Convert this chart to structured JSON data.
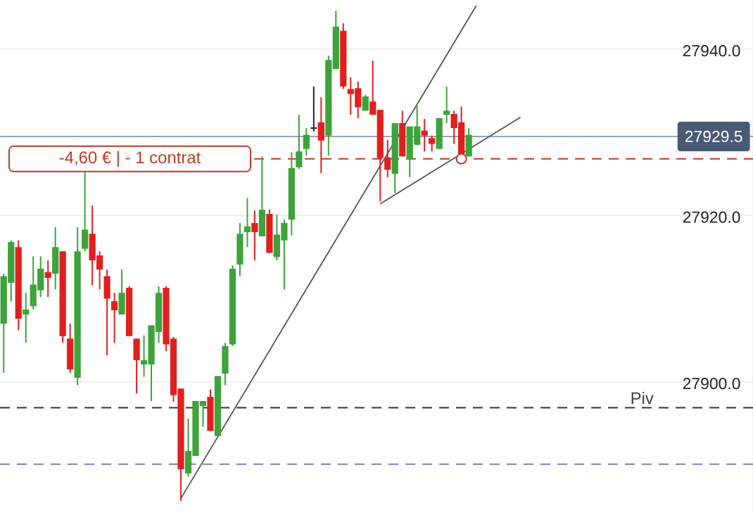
{
  "chart_data": {
    "type": "candlestick",
    "categories": [
      null,
      null,
      null,
      null,
      null,
      null,
      null,
      null,
      null,
      null,
      null,
      null,
      null,
      null,
      null,
      null,
      null,
      null,
      null,
      null,
      null,
      null,
      null,
      null,
      null,
      null,
      null,
      null,
      null,
      null,
      null,
      null,
      null,
      null,
      null,
      null,
      null,
      null,
      null,
      null,
      null,
      null,
      null,
      null,
      null,
      null,
      null,
      null,
      null,
      null,
      null,
      null,
      null,
      null,
      null,
      null,
      null,
      null,
      null,
      null,
      null,
      null,
      null,
      null,
      null,
      null,
      null,
      null,
      null,
      null,
      null,
      null,
      null,
      null,
      null,
      null,
      null,
      null,
      null,
      null,
      null,
      null,
      null,
      null,
      null,
      null,
      null,
      null,
      null,
      null,
      null,
      null,
      null,
      null,
      null,
      null,
      null,
      null,
      null,
      null,
      null,
      null
    ],
    "ohlc": [
      [
        27907.0,
        27913.0,
        27901.1,
        27912.7
      ],
      [
        27911.9,
        27917.0,
        27909.7,
        27916.8
      ],
      [
        27916.2,
        27917.0,
        27906.2,
        27907.6
      ],
      [
        27908.1,
        27910.7,
        27904.7,
        27908.7
      ],
      [
        27909.1,
        27915.1,
        27908.7,
        27911.7
      ],
      [
        27911.0,
        27915.1,
        27910.2,
        27913.6
      ],
      [
        27913.2,
        27914.6,
        27910.2,
        27912.5
      ],
      [
        27913.0,
        27918.6,
        27911.1,
        27916.2
      ],
      [
        27915.7,
        27915.7,
        27904.7,
        27905.5
      ],
      [
        27905.2,
        27907.0,
        27901.1,
        27901.5
      ],
      [
        27900.5,
        27918.6,
        27899.6,
        27915.7
      ],
      [
        27916.0,
        27925.2,
        27915.7,
        27918.3
      ],
      [
        27917.8,
        27921.2,
        27911.6,
        27914.6
      ],
      [
        27915.2,
        27915.7,
        27911.1,
        27913.5
      ],
      [
        27912.7,
        27913.5,
        27903.2,
        27910.0
      ],
      [
        27909.7,
        27910.7,
        27904.7,
        27908.6
      ],
      [
        27908.1,
        27913.5,
        27908.1,
        27910.7
      ],
      [
        27911.3,
        27911.5,
        27905.5,
        27905.5
      ],
      [
        27905.2,
        27905.2,
        27898.6,
        27902.6
      ],
      [
        27902.1,
        27905.6,
        27900.6,
        27902.6
      ],
      [
        27902.1,
        27906.8,
        27897.7,
        27906.8
      ],
      [
        27906.0,
        27911.5,
        27904.7,
        27910.7
      ],
      [
        27911.3,
        27911.5,
        27903.7,
        27904.5
      ],
      [
        27905.2,
        27905.4,
        27897.6,
        27898.4
      ],
      [
        27899.2,
        27899.2,
        27885.7,
        27889.5
      ],
      [
        27889.0,
        27895.6,
        27888.6,
        27891.7
      ],
      [
        27891.1,
        27897.7,
        27891.1,
        27897.7
      ],
      [
        27897.1,
        27897.7,
        27894.6,
        27897.7
      ],
      [
        27898.2,
        27899.1,
        27894.1,
        27894.1
      ],
      [
        27893.5,
        27900.7,
        27893.5,
        27900.7
      ],
      [
        27901.0,
        27904.7,
        27899.6,
        27904.3
      ],
      [
        27904.5,
        27914.0,
        27904.3,
        27913.6
      ],
      [
        27914.1,
        27919.1,
        27912.7,
        27917.8
      ],
      [
        27918.0,
        27922.1,
        27916.2,
        27918.7
      ],
      [
        27919.1,
        27920.6,
        27914.6,
        27918.0
      ],
      [
        27917.5,
        27927.1,
        27917.5,
        27920.7
      ],
      [
        27920.2,
        27920.7,
        27915.5,
        27915.5
      ],
      [
        27915.0,
        27920.1,
        27914.6,
        27917.7
      ],
      [
        27917.0,
        27919.5,
        27911.1,
        27919.1
      ],
      [
        27919.5,
        27927.6,
        27917.6,
        27925.7
      ],
      [
        27925.8,
        27932.1,
        27925.6,
        27927.7
      ],
      [
        27928.0,
        27930.5,
        27927.2,
        27929.7
      ],
      [
        27930.5,
        27935.5,
        27930.1,
        27930.5
      ],
      [
        27931.2,
        27934.2,
        27925.1,
        27929.0
      ],
      [
        27929.6,
        27939.2,
        27927.2,
        27938.7
      ],
      [
        27937.6,
        27944.6,
        27937.6,
        27942.7
      ],
      [
        27942.2,
        27943.1,
        27935.2,
        27935.5
      ],
      [
        27935.2,
        27936.6,
        27932.1,
        27934.6
      ],
      [
        27935.3,
        27936.1,
        27931.7,
        27933.0
      ],
      [
        27932.6,
        27934.5,
        27932.6,
        27934.3
      ],
      [
        27933.7,
        27938.6,
        27932.1,
        27932.1
      ],
      [
        27932.7,
        27932.7,
        27921.7,
        27926.9
      ],
      [
        27927.0,
        27929.1,
        27924.6,
        27925.5
      ],
      [
        27925.0,
        27931.1,
        27922.7,
        27931.1
      ],
      [
        27931.1,
        27932.6,
        27927.1,
        27927.1
      ],
      [
        27926.7,
        27930.7,
        27924.6,
        27930.7
      ],
      [
        27928.5,
        27933.2,
        27928.5,
        27930.7
      ],
      [
        27930.2,
        27931.6,
        27927.7,
        27929.6
      ],
      [
        27929.3,
        27929.6,
        27927.7,
        27928.6
      ],
      [
        27928.0,
        27931.7,
        27928.0,
        27931.7
      ],
      [
        27932.1,
        27935.5,
        27931.1,
        27932.6
      ],
      [
        27932.2,
        27932.6,
        27928.6,
        27930.5
      ],
      [
        27931.2,
        27933.1,
        27926.9,
        27926.9
      ],
      [
        27927.1,
        27930.5,
        27927.1,
        27929.7
      ],
      null,
      null,
      null,
      null,
      null,
      null,
      null,
      null,
      null,
      null,
      null,
      null,
      null,
      null,
      null,
      null,
      null,
      null,
      null,
      null,
      null,
      null,
      null,
      null,
      null,
      null,
      null,
      null,
      null,
      null,
      null,
      null,
      null,
      null,
      null,
      null,
      null,
      null
    ],
    "colors": [
      "#3da33a",
      "#3da33a",
      "#e0201f",
      "#3da33a",
      "#3da33a",
      "#3da33a",
      "#e0201f",
      "#3da33a",
      "#e0201f",
      "#e0201f",
      "#3da33a",
      "#3da33a",
      "#e0201f",
      "#e0201f",
      "#e0201f",
      "#e0201f",
      "#3da33a",
      "#e0201f",
      "#e0201f",
      "#3da33a",
      "#3da33a",
      "#3da33a",
      "#e0201f",
      "#e0201f",
      "#e0201f",
      "#3da33a",
      "#3da33a",
      "#3da33a",
      "#e0201f",
      "#3da33a",
      "#3da33a",
      "#3da33a",
      "#3da33a",
      "#3da33a",
      "#e0201f",
      "#3da33a",
      "#e0201f",
      "#3da33a",
      "#3da33a",
      "#3da33a",
      "#3da33a",
      "#3da33a",
      "#222222",
      "#e0201f",
      "#3da33a",
      "#3da33a",
      "#e0201f",
      "#e0201f",
      "#e0201f",
      "#3da33a",
      "#e0201f",
      "#e0201f",
      "#e0201f",
      "#3da33a",
      "#e0201f",
      "#3da33a",
      "#3da33a",
      "#e0201f",
      "#e0201f",
      "#3da33a",
      "#3da33a",
      "#e0201f",
      "#e0201f",
      "#3da33a",
      null,
      null,
      null,
      null,
      null,
      null,
      null,
      null,
      null,
      null,
      null,
      null,
      null,
      null,
      null,
      null,
      null,
      null,
      null,
      null,
      null,
      null,
      null,
      null,
      null,
      null,
      null,
      null,
      null,
      null,
      null,
      null,
      null,
      null,
      null,
      null,
      null,
      null
    ],
    "series": [
      {
        "type": "line",
        "color": "#555555",
        "values": [
          null,
          null,
          null,
          null,
          null,
          null,
          null,
          null,
          null,
          null,
          null,
          null,
          null,
          null,
          null,
          null,
          null,
          null,
          null,
          null,
          null,
          null,
          null,
          null,
          27886.0,
          null,
          null,
          null,
          null,
          null,
          null,
          null,
          null,
          null,
          null,
          null,
          null,
          null,
          null,
          null,
          null,
          null,
          null,
          null,
          null,
          null,
          null,
          null,
          null,
          null,
          null,
          null,
          null,
          null,
          null,
          null,
          null,
          null,
          null,
          null,
          null,
          null,
          null,
          null,
          27945.2,
          null,
          null,
          null,
          null,
          null,
          null,
          null,
          null,
          null,
          null,
          null,
          null,
          null,
          null,
          null,
          null,
          null,
          null,
          null,
          null,
          null,
          null,
          null,
          null,
          null,
          null,
          null,
          null,
          null,
          null,
          null,
          null,
          null,
          null,
          null,
          null,
          null
        ]
      },
      {
        "type": "line",
        "color": "#555555",
        "values": [
          null,
          null,
          null,
          null,
          null,
          null,
          null,
          null,
          null,
          null,
          null,
          null,
          null,
          null,
          null,
          null,
          null,
          null,
          null,
          null,
          null,
          null,
          null,
          null,
          null,
          null,
          null,
          null,
          null,
          null,
          null,
          null,
          null,
          null,
          null,
          null,
          null,
          null,
          null,
          null,
          null,
          null,
          null,
          null,
          null,
          null,
          null,
          null,
          null,
          null,
          null,
          27921.4,
          null,
          null,
          null,
          null,
          null,
          null,
          null,
          null,
          null,
          null,
          null,
          null,
          null,
          null,
          null,
          null,
          null,
          null,
          27931.8,
          null,
          null,
          null,
          null,
          null,
          null,
          null,
          null,
          null,
          null,
          null,
          null,
          null,
          null,
          null,
          null,
          null,
          null,
          null,
          null,
          null,
          null,
          null,
          null,
          null,
          null,
          null,
          null,
          null,
          null,
          null
        ]
      },
      {
        "type": "scatter",
        "marker": "circle",
        "color": "#c0392b",
        "values": [
          null,
          null,
          null,
          null,
          null,
          null,
          null,
          null,
          null,
          null,
          null,
          null,
          null,
          null,
          null,
          null,
          null,
          null,
          null,
          null,
          null,
          null,
          null,
          null,
          null,
          null,
          null,
          null,
          null,
          null,
          null,
          null,
          null,
          null,
          null,
          null,
          null,
          null,
          null,
          null,
          null,
          null,
          null,
          null,
          null,
          null,
          null,
          null,
          null,
          null,
          null,
          null,
          null,
          null,
          null,
          null,
          null,
          null,
          null,
          null,
          null,
          null,
          27926.8,
          null,
          null,
          null,
          null,
          null,
          null,
          null,
          null,
          null,
          null,
          null,
          null,
          null,
          null,
          null,
          null,
          null,
          null,
          null,
          null,
          null,
          null,
          null,
          null,
          null,
          null,
          null,
          null,
          null,
          null,
          null,
          null,
          null,
          null,
          null,
          null,
          null,
          null,
          null
        ]
      }
    ],
    "ylim": [
      27884.0,
      27945.9
    ],
    "yticks": [
      {
        "value": 27900,
        "label": "27900.0"
      },
      {
        "value": 27920,
        "label": "27920.0"
      },
      {
        "value": 27940,
        "label": "27940.0"
      }
    ],
    "grid": "y",
    "ref_lines": [
      {
        "axis": "y",
        "value": 27929.5,
        "label": "27929.5",
        "color": "#9aa3b5",
        "line_style": "solid"
      },
      {
        "axis": "y",
        "value": 27926.8,
        "label": "-4,60 €  |  - 1 contrat",
        "color": "#c0392b",
        "line_style": "dashed"
      },
      {
        "axis": "y",
        "value": 27896.9,
        "label": "Piv",
        "color": "#333333",
        "line_style": "dashed"
      },
      {
        "axis": "y",
        "value": 27890.1,
        "color": "#8878b8",
        "line_style": "dashed"
      }
    ]
  }
}
